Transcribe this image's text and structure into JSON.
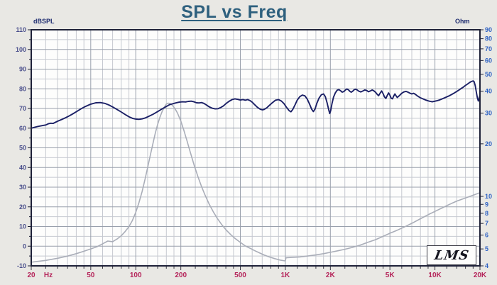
{
  "page": {
    "background": "#e9e8e4"
  },
  "title": {
    "text": "SPL vs Freq",
    "color": "#2e607e"
  },
  "logo": {
    "text": "LMS"
  },
  "chart_data": {
    "type": "line",
    "title": "SPL vs Freq",
    "x_axis": {
      "scale": "log",
      "min": 20,
      "max": 20000,
      "unit": "Hz",
      "tick_values": [
        20,
        50,
        100,
        200,
        500,
        1000,
        2000,
        5000,
        10000,
        20000
      ],
      "tick_labels": [
        "20",
        "50",
        "100",
        "200",
        "500",
        "1K",
        "2K",
        "5K",
        "10K",
        "20K"
      ],
      "label_color": "#b5245a"
    },
    "y_left": {
      "scale": "linear",
      "min": -10,
      "max": 110,
      "step": 10,
      "unit": "dBSPL",
      "ticks": [
        110,
        100,
        90,
        80,
        70,
        60,
        50,
        40,
        30,
        20,
        10,
        0,
        -10
      ],
      "label_color": "#4a4f8c"
    },
    "y_right": {
      "scale": "log",
      "min": 4,
      "max": 90,
      "unit": "Ohm",
      "ticks": [
        90,
        80,
        70,
        60,
        50,
        40,
        30,
        20,
        10,
        9,
        8,
        7,
        6,
        5,
        4
      ],
      "label_color": "#2e62c4"
    },
    "grid": {
      "background": "#fdfdfc",
      "minor_color": "#c6c9d0",
      "major_color": "#99a0ac",
      "border_color": "#1e2138",
      "dB_minor_step": 5,
      "freq_minor_multipliers": [
        1,
        1.2,
        1.4,
        1.6,
        1.8,
        2,
        2.5,
        3,
        3.5,
        4,
        4.5,
        5,
        6,
        7,
        8,
        9
      ]
    },
    "legend": "none",
    "series": [
      {
        "name": "SPL",
        "axis": "left",
        "unit": "dBSPL",
        "color": "#1b2066",
        "points": [
          [
            20,
            60
          ],
          [
            22,
            60.8
          ],
          [
            24,
            61.4
          ],
          [
            25,
            61.6
          ],
          [
            26,
            62.2
          ],
          [
            27,
            62.5
          ],
          [
            28,
            62.4
          ],
          [
            30,
            63.5
          ],
          [
            32,
            64.4
          ],
          [
            34,
            65.3
          ],
          [
            36,
            66.3
          ],
          [
            38,
            67.3
          ],
          [
            40,
            68.3
          ],
          [
            43,
            69.8
          ],
          [
            46,
            71
          ],
          [
            50,
            72.2
          ],
          [
            54,
            72.9
          ],
          [
            58,
            73
          ],
          [
            62,
            72.6
          ],
          [
            66,
            71.8
          ],
          [
            70,
            70.8
          ],
          [
            75,
            69.5
          ],
          [
            80,
            68.2
          ],
          [
            85,
            66.9
          ],
          [
            90,
            65.8
          ],
          [
            95,
            65
          ],
          [
            100,
            64.6
          ],
          [
            105,
            64.5
          ],
          [
            110,
            64.7
          ],
          [
            115,
            65.1
          ],
          [
            120,
            65.7
          ],
          [
            130,
            67
          ],
          [
            140,
            68.4
          ],
          [
            150,
            69.8
          ],
          [
            160,
            71
          ],
          [
            168,
            71.9
          ],
          [
            175,
            72.3
          ],
          [
            185,
            72.8
          ],
          [
            195,
            73.2
          ],
          [
            205,
            73.4
          ],
          [
            215,
            73.3
          ],
          [
            225,
            73.6
          ],
          [
            235,
            73.7
          ],
          [
            245,
            73.4
          ],
          [
            255,
            72.9
          ],
          [
            265,
            72.8
          ],
          [
            275,
            73
          ],
          [
            285,
            72.6
          ],
          [
            295,
            71.9
          ],
          [
            310,
            70.8
          ],
          [
            325,
            70.1
          ],
          [
            340,
            69.8
          ],
          [
            355,
            69.9
          ],
          [
            370,
            70.5
          ],
          [
            385,
            71.3
          ],
          [
            400,
            72.4
          ],
          [
            420,
            73.6
          ],
          [
            440,
            74.5
          ],
          [
            460,
            74.9
          ],
          [
            480,
            74.6
          ],
          [
            500,
            74.3
          ],
          [
            520,
            74.5
          ],
          [
            540,
            74.2
          ],
          [
            560,
            74.5
          ],
          [
            580,
            74
          ],
          [
            600,
            73.2
          ],
          [
            620,
            72.1
          ],
          [
            650,
            70.6
          ],
          [
            680,
            69.6
          ],
          [
            700,
            69.3
          ],
          [
            720,
            69.5
          ],
          [
            750,
            70.3
          ],
          [
            780,
            71.5
          ],
          [
            820,
            73
          ],
          [
            860,
            74.2
          ],
          [
            900,
            74.5
          ],
          [
            940,
            73.8
          ],
          [
            980,
            72.4
          ],
          [
            1020,
            70.5
          ],
          [
            1060,
            68.9
          ],
          [
            1090,
            68.3
          ],
          [
            1120,
            69.5
          ],
          [
            1160,
            71.8
          ],
          [
            1200,
            74.2
          ],
          [
            1250,
            76
          ],
          [
            1300,
            76.8
          ],
          [
            1350,
            76.4
          ],
          [
            1400,
            74.8
          ],
          [
            1450,
            72.3
          ],
          [
            1500,
            69.6
          ],
          [
            1540,
            68.4
          ],
          [
            1580,
            69.8
          ],
          [
            1620,
            72.5
          ],
          [
            1680,
            75.3
          ],
          [
            1740,
            77
          ],
          [
            1800,
            77.4
          ],
          [
            1850,
            76
          ],
          [
            1900,
            73
          ],
          [
            1950,
            69.3
          ],
          [
            1980,
            67.4
          ],
          [
            2010,
            69
          ],
          [
            2050,
            72.5
          ],
          [
            2100,
            75.8
          ],
          [
            2160,
            78
          ],
          [
            2220,
            79.3
          ],
          [
            2280,
            79.6
          ],
          [
            2340,
            79
          ],
          [
            2400,
            78.3
          ],
          [
            2460,
            78.6
          ],
          [
            2520,
            79.4
          ],
          [
            2580,
            79.9
          ],
          [
            2640,
            79.5
          ],
          [
            2700,
            78.7
          ],
          [
            2760,
            78.3
          ],
          [
            2820,
            78.8
          ],
          [
            2880,
            79.5
          ],
          [
            2950,
            79.8
          ],
          [
            3020,
            79.4
          ],
          [
            3100,
            78.8
          ],
          [
            3200,
            78.4
          ],
          [
            3300,
            78.9
          ],
          [
            3400,
            79.4
          ],
          [
            3500,
            79.1
          ],
          [
            3600,
            78.5
          ],
          [
            3700,
            78.9
          ],
          [
            3800,
            79.4
          ],
          [
            3900,
            79
          ],
          [
            4000,
            78.3
          ],
          [
            4100,
            77.3
          ],
          [
            4200,
            76.5
          ],
          [
            4300,
            77.8
          ],
          [
            4400,
            78.9
          ],
          [
            4500,
            77.6
          ],
          [
            4600,
            75.9
          ],
          [
            4700,
            75.1
          ],
          [
            4800,
            76.6
          ],
          [
            4900,
            77.9
          ],
          [
            5000,
            76.7
          ],
          [
            5100,
            75.2
          ],
          [
            5200,
            74.9
          ],
          [
            5300,
            76.3
          ],
          [
            5400,
            77.4
          ],
          [
            5500,
            76.4
          ],
          [
            5600,
            75.6
          ],
          [
            5800,
            76.6
          ],
          [
            6000,
            77.7
          ],
          [
            6200,
            78.4
          ],
          [
            6400,
            78.7
          ],
          [
            6600,
            78.3
          ],
          [
            6800,
            77.8
          ],
          [
            7000,
            77.4
          ],
          [
            7200,
            77.7
          ],
          [
            7400,
            77.2
          ],
          [
            7600,
            76.5
          ],
          [
            7800,
            75.9
          ],
          [
            8000,
            75.4
          ],
          [
            8300,
            74.9
          ],
          [
            8600,
            74.4
          ],
          [
            9000,
            73.9
          ],
          [
            9300,
            73.6
          ],
          [
            9600,
            73.4
          ],
          [
            10000,
            73.7
          ],
          [
            10400,
            74
          ],
          [
            10800,
            74.4
          ],
          [
            11200,
            74.9
          ],
          [
            11600,
            75.4
          ],
          [
            12000,
            75.9
          ],
          [
            12500,
            76.5
          ],
          [
            13000,
            77.2
          ],
          [
            13500,
            77.9
          ],
          [
            14000,
            78.7
          ],
          [
            14500,
            79.4
          ],
          [
            15000,
            80.2
          ],
          [
            15500,
            80.9
          ],
          [
            16000,
            81.7
          ],
          [
            16500,
            82.4
          ],
          [
            17000,
            83.1
          ],
          [
            17500,
            83.7
          ],
          [
            18000,
            84
          ],
          [
            18300,
            83.5
          ],
          [
            18600,
            81.5
          ],
          [
            18900,
            78.5
          ],
          [
            19200,
            75.5
          ],
          [
            19500,
            73.8
          ],
          [
            19700,
            74.5
          ],
          [
            20000,
            77
          ]
        ]
      },
      {
        "name": "Impedance",
        "axis": "right",
        "unit": "Ohm",
        "color": "#a9adb8",
        "points": [
          [
            20,
            4.2
          ],
          [
            25,
            4.3
          ],
          [
            30,
            4.42
          ],
          [
            35,
            4.55
          ],
          [
            40,
            4.7
          ],
          [
            45,
            4.85
          ],
          [
            50,
            5
          ],
          [
            55,
            5.15
          ],
          [
            60,
            5.35
          ],
          [
            65,
            5.55
          ],
          [
            70,
            5.5
          ],
          [
            75,
            5.7
          ],
          [
            80,
            5.95
          ],
          [
            85,
            6.3
          ],
          [
            90,
            6.7
          ],
          [
            95,
            7.3
          ],
          [
            100,
            8.1
          ],
          [
            105,
            9.2
          ],
          [
            110,
            10.6
          ],
          [
            115,
            12.4
          ],
          [
            120,
            14.6
          ],
          [
            125,
            17.2
          ],
          [
            130,
            20
          ],
          [
            135,
            23
          ],
          [
            140,
            25.8
          ],
          [
            145,
            28.4
          ],
          [
            150,
            30.6
          ],
          [
            155,
            32.3
          ],
          [
            160,
            33.8
          ],
          [
            165,
            34.2
          ],
          [
            170,
            34
          ],
          [
            176,
            33.2
          ],
          [
            183,
            31.8
          ],
          [
            190,
            30
          ],
          [
            200,
            27
          ],
          [
            210,
            23.8
          ],
          [
            220,
            20.8
          ],
          [
            232,
            17.8
          ],
          [
            245,
            15.2
          ],
          [
            260,
            13
          ],
          [
            275,
            11.4
          ],
          [
            290,
            10.2
          ],
          [
            310,
            9
          ],
          [
            330,
            8.15
          ],
          [
            350,
            7.5
          ],
          [
            375,
            6.9
          ],
          [
            400,
            6.45
          ],
          [
            430,
            6.05
          ],
          [
            460,
            5.75
          ],
          [
            500,
            5.45
          ],
          [
            540,
            5.2
          ],
          [
            580,
            5.05
          ],
          [
            620,
            4.9
          ],
          [
            670,
            4.75
          ],
          [
            720,
            4.62
          ],
          [
            780,
            4.5
          ],
          [
            850,
            4.4
          ],
          [
            920,
            4.32
          ],
          [
            995,
            4.27
          ],
          [
            1000,
            4.27
          ],
          [
            1010,
            4.45
          ],
          [
            1100,
            4.47
          ],
          [
            1250,
            4.5
          ],
          [
            1400,
            4.55
          ],
          [
            1600,
            4.62
          ],
          [
            1800,
            4.7
          ],
          [
            2000,
            4.78
          ],
          [
            2250,
            4.88
          ],
          [
            2500,
            4.98
          ],
          [
            2800,
            5.1
          ],
          [
            3150,
            5.25
          ],
          [
            3550,
            5.45
          ],
          [
            4000,
            5.65
          ],
          [
            4500,
            5.9
          ],
          [
            5000,
            6.15
          ],
          [
            5600,
            6.4
          ],
          [
            6300,
            6.7
          ],
          [
            7100,
            7.05
          ],
          [
            8000,
            7.45
          ],
          [
            9000,
            7.85
          ],
          [
            10000,
            8.2
          ],
          [
            11200,
            8.6
          ],
          [
            12500,
            9
          ],
          [
            14000,
            9.4
          ],
          [
            16000,
            9.8
          ],
          [
            18000,
            10.15
          ],
          [
            20000,
            10.5
          ]
        ]
      }
    ]
  }
}
